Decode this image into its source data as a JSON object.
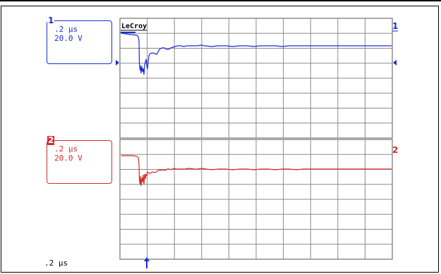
{
  "channel1": {
    "number": "1",
    "timebase": ".2 µs",
    "volts": "20.0 V",
    "color": "#1a2bd6",
    "end_label": "1"
  },
  "channel2": {
    "number": "2",
    "timebase": ".2 µs",
    "volts": "20.0 V",
    "color": "#d62b2b",
    "end_label": "2"
  },
  "logo": "LeCroy",
  "footer": {
    "timebase": ".2 µs"
  },
  "grid": {
    "divisions_x": 10,
    "divisions_y": 8
  }
}
